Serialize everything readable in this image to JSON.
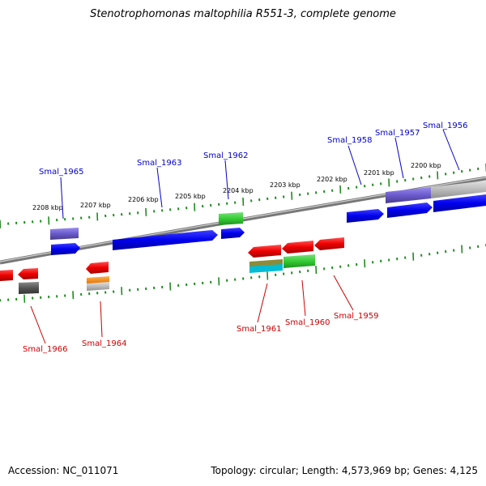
{
  "title": "Stenotrophomonas maltophilia R551-3, complete genome",
  "footer": {
    "accession": "Accession: NC_011071",
    "topology": "Topology: circular; Length: 4,573,969 bp; Genes: 4,125"
  },
  "scale_labels": [
    "2208 kbp",
    "2207 kbp",
    "2206 kbp",
    "2205 kbp",
    "2204 kbp",
    "2203 kbp",
    "2202 kbp",
    "2201 kbp",
    "2200 kbp"
  ],
  "colors": {
    "forward_label": "#0000cc",
    "reverse_label": "#cc0000",
    "tick": "#228b22",
    "backbone": "#888888",
    "forward_gene": "#0000ee",
    "reverse_gene": "#ee0000",
    "green_feature": "#33cc33",
    "purple_feature": "#6a5acd",
    "gray_feature": "#bbbbbb",
    "dark_gray_feature": "#555555",
    "orange_feature": "#ff8c00",
    "cyan_feature": "#00bcd4",
    "olive_feature": "#8b8b3a"
  },
  "forward_labels": [
    "Smal_1965",
    "Smal_1963",
    "Smal_1962",
    "Smal_1958",
    "Smal_1957",
    "Smal_1956"
  ],
  "reverse_labels": [
    "Smal_1966",
    "Smal_1964",
    "Smal_1961",
    "Smal_1960",
    "Smal_1959"
  ]
}
